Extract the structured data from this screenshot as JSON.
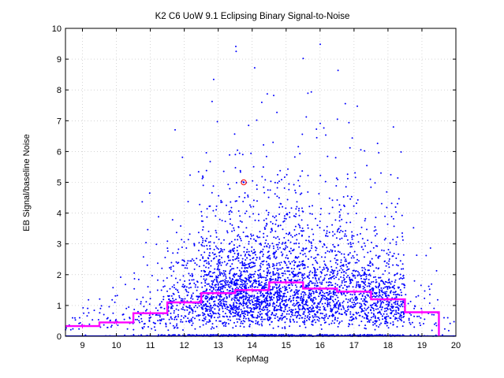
{
  "chart_data": {
    "type": "scatter",
    "title": "K2 C6 UoW 9.1 Eclipsing Binary Signal-to-Noise",
    "xlabel": "KepMag",
    "ylabel": "EB Signal/baseline Noise",
    "xlim": [
      8.5,
      20
    ],
    "ylim": [
      0,
      10
    ],
    "xticks": [
      9,
      10,
      11,
      12,
      13,
      14,
      15,
      16,
      17,
      18,
      19,
      20
    ],
    "yticks": [
      0,
      1,
      2,
      3,
      4,
      5,
      6,
      7,
      8,
      9,
      10
    ],
    "grid": true,
    "legend": "none",
    "point_color": "#0000ff",
    "step_color": "#ff00ff",
    "highlight_color": "#ff0000",
    "point_density_by_magnitude": [
      {
        "bin": [
          8.5,
          9.5
        ],
        "count": 25,
        "median_snr": 0.5
      },
      {
        "bin": [
          9.5,
          10.5
        ],
        "count": 45,
        "median_snr": 0.6
      },
      {
        "bin": [
          10.5,
          11.5
        ],
        "count": 120,
        "median_snr": 0.9
      },
      {
        "bin": [
          11.5,
          12.5
        ],
        "count": 300,
        "median_snr": 1.2
      },
      {
        "bin": [
          12.5,
          13.5
        ],
        "count": 650,
        "median_snr": 1.5
      },
      {
        "bin": [
          13.5,
          14.5
        ],
        "count": 800,
        "median_snr": 1.6
      },
      {
        "bin": [
          14.5,
          15.5
        ],
        "count": 700,
        "median_snr": 1.7
      },
      {
        "bin": [
          15.5,
          16.5
        ],
        "count": 550,
        "median_snr": 1.6
      },
      {
        "bin": [
          16.5,
          17.5
        ],
        "count": 500,
        "median_snr": 1.5
      },
      {
        "bin": [
          17.5,
          18.5
        ],
        "count": 450,
        "median_snr": 1.3
      },
      {
        "bin": [
          18.5,
          19.5
        ],
        "count": 60,
        "median_snr": 0.9
      },
      {
        "bin": [
          19.5,
          20
        ],
        "count": 8,
        "median_snr": 0.4
      }
    ],
    "median_step": [
      {
        "x0": 8.5,
        "x1": 9.5,
        "y": 0.33
      },
      {
        "x0": 9.5,
        "x1": 10.5,
        "y": 0.45
      },
      {
        "x0": 10.5,
        "x1": 11.5,
        "y": 0.75
      },
      {
        "x0": 11.5,
        "x1": 12.5,
        "y": 1.1
      },
      {
        "x0": 12.5,
        "x1": 13.5,
        "y": 1.4
      },
      {
        "x0": 13.5,
        "x1": 14.5,
        "y": 1.5
      },
      {
        "x0": 14.5,
        "x1": 15.5,
        "y": 1.75
      },
      {
        "x0": 15.5,
        "x1": 16.5,
        "y": 1.55
      },
      {
        "x0": 16.5,
        "x1": 17.5,
        "y": 1.45
      },
      {
        "x0": 17.5,
        "x1": 18.5,
        "y": 1.2
      },
      {
        "x0": 18.5,
        "x1": 19.5,
        "y": 0.78
      },
      {
        "x0": 19.5,
        "x1": 19.5,
        "y": 0.0
      }
    ],
    "highlighted_point": {
      "x": 13.75,
      "y": 5.0
    }
  }
}
